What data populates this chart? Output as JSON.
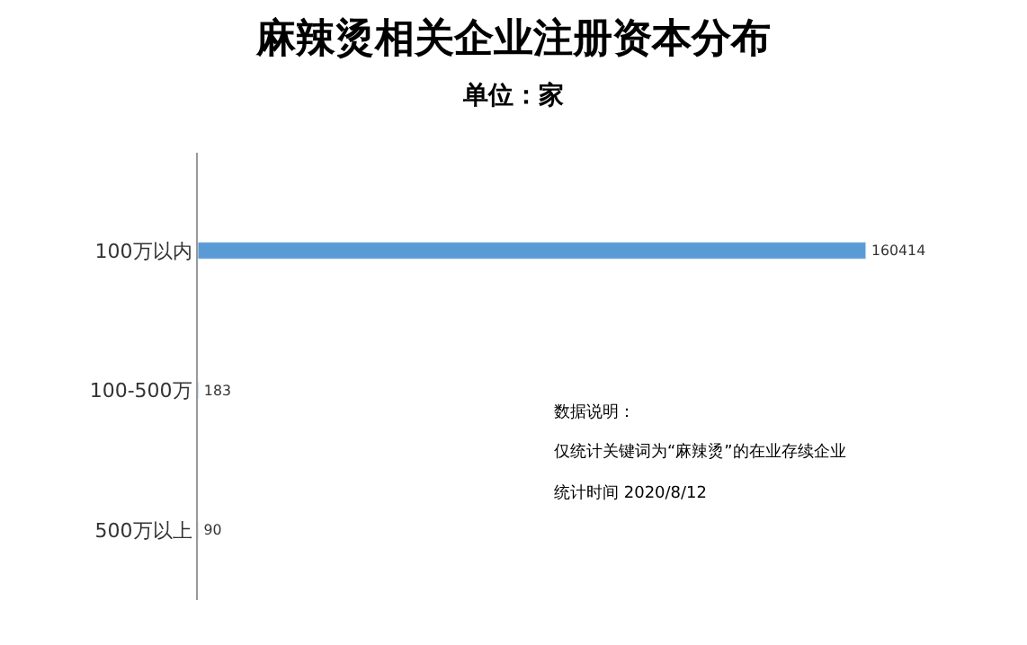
{
  "chart_data": {
    "type": "bar",
    "orientation": "horizontal",
    "title": "麻辣烫相关企业注册资本分布",
    "subtitle": "单位：家",
    "categories": [
      "100万以内",
      "100-500万",
      "500万以上"
    ],
    "values": [
      160414,
      183,
      90
    ],
    "color": "#5b9bd5",
    "data_labels": true,
    "tick_labels": "y",
    "legend": false,
    "annotations": [
      "数据说明：",
      "仅统计关键词为“麻辣烫”的在业存续企业",
      "统计时间 2020/8/12"
    ]
  }
}
